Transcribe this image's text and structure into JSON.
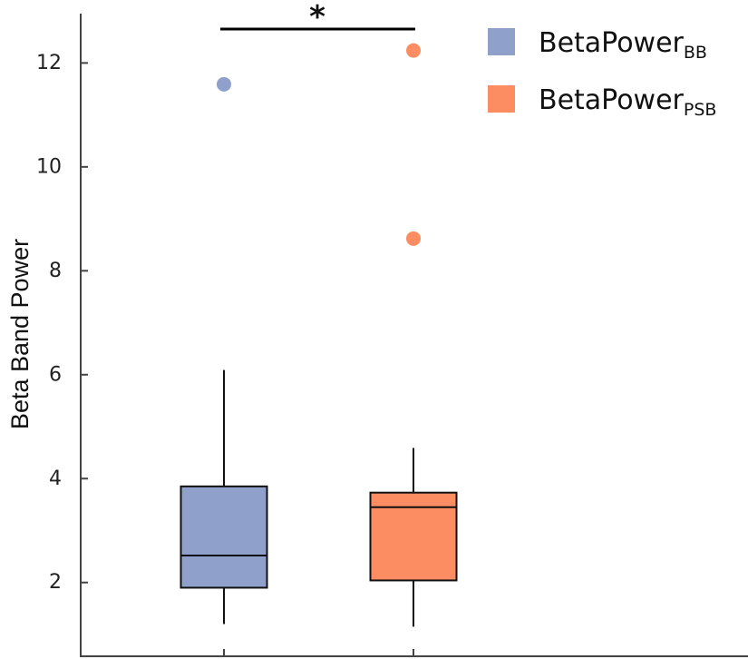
{
  "chart_data": {
    "type": "box",
    "title": "",
    "xlabel": "",
    "ylabel": "Beta Band Power",
    "ylim": [
      0.58,
      12.95
    ],
    "yticks": [
      2,
      4,
      6,
      8,
      10,
      12
    ],
    "ytick_labels": [
      "2",
      "4",
      "6",
      "8",
      "10",
      "12"
    ],
    "grid": false,
    "legend_position": "top-right",
    "series": [
      {
        "name": "BetaPowerBB",
        "label_main": "BetaPower",
        "label_sub": "BB",
        "color": "#8FA0CB",
        "whisker_low": 1.2,
        "q1": 1.9,
        "median": 2.52,
        "q3": 3.85,
        "whisker_high": 6.09,
        "outliers": [
          11.59
        ]
      },
      {
        "name": "BetaPowerPSB",
        "label_main": "BetaPower",
        "label_sub": "PSB",
        "color": "#FC8C62",
        "whisker_low": 1.15,
        "q1": 2.04,
        "median": 3.45,
        "q3": 3.73,
        "whisker_high": 4.59,
        "outliers": [
          12.24,
          8.62
        ]
      }
    ],
    "annotations": [
      {
        "text": "*",
        "between": [
          0,
          1
        ],
        "meaning": "significant difference"
      }
    ]
  }
}
